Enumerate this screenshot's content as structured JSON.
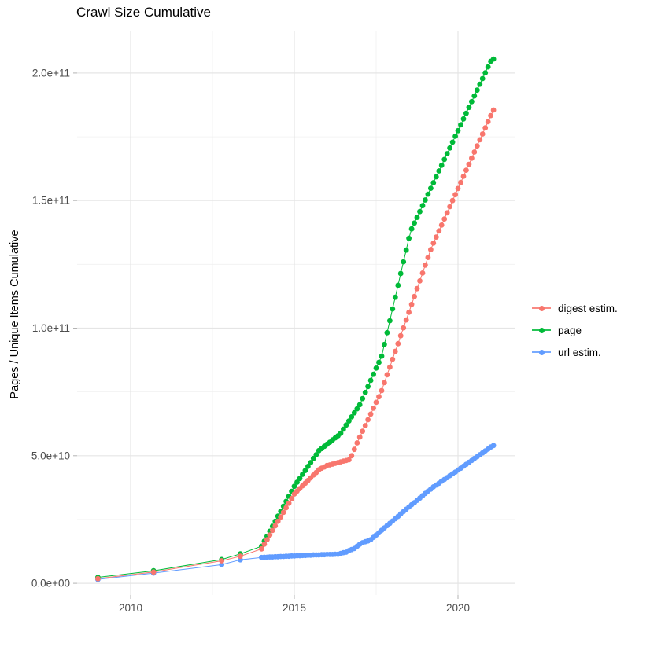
{
  "title": "Crawl Size Cumulative",
  "chart_data": {
    "type": "scatter",
    "title": "Crawl Size Cumulative",
    "xlabel": "",
    "ylabel": "Pages / Unique Items Cumulative",
    "value_unit": "pages, values stored in units of 1e9",
    "xlim": [
      2008.365,
      2021.754
    ],
    "ylim_e9": [
      -4.6,
      216.3
    ],
    "grid": "major+minor, light grey on white",
    "legend_position": "right",
    "x_major_ticks": [
      {
        "value": 2010,
        "label": "2010"
      },
      {
        "value": 2015,
        "label": "2015"
      },
      {
        "value": 2020,
        "label": "2020"
      }
    ],
    "x_minor_ticks": [
      2012.5,
      2017.5
    ],
    "y_major_ticks": [
      {
        "value": 0,
        "label": "0.0e+00"
      },
      {
        "value": 50,
        "label": "5.0e+10"
      },
      {
        "value": 100,
        "label": "1.0e+11"
      },
      {
        "value": 150,
        "label": "1.5e+11"
      },
      {
        "value": 200,
        "label": "2.0e+11"
      }
    ],
    "y_minor_ticks": [
      25,
      75,
      125,
      175
    ],
    "series": [
      {
        "name": "digest estim.",
        "color": "#F8766D",
        "points_year_value_e9": [
          [
            2009.0,
            1.8
          ],
          [
            2010.7,
            4.4
          ],
          [
            2012.78,
            8.8
          ],
          [
            2013.35,
            10.6
          ],
          [
            2014.0,
            13.5
          ],
          [
            2014.083,
            15.3
          ],
          [
            2014.167,
            17.1
          ],
          [
            2014.25,
            18.9
          ],
          [
            2014.333,
            20.7
          ],
          [
            2014.417,
            22.5
          ],
          [
            2014.5,
            24.3
          ],
          [
            2014.583,
            26.0
          ],
          [
            2014.667,
            27.8
          ],
          [
            2014.75,
            29.6
          ],
          [
            2014.833,
            31.4
          ],
          [
            2014.917,
            33.2
          ],
          [
            2015.0,
            35.0
          ],
          [
            2015.083,
            36.1
          ],
          [
            2015.167,
            37.1
          ],
          [
            2015.25,
            38.2
          ],
          [
            2015.333,
            39.2
          ],
          [
            2015.417,
            40.3
          ],
          [
            2015.5,
            41.3
          ],
          [
            2015.583,
            42.4
          ],
          [
            2015.667,
            43.4
          ],
          [
            2015.75,
            44.5
          ],
          [
            2015.833,
            45.1
          ],
          [
            2015.917,
            45.6
          ],
          [
            2016.0,
            46.2
          ],
          [
            2016.083,
            46.4
          ],
          [
            2016.167,
            46.7
          ],
          [
            2016.25,
            47.0
          ],
          [
            2016.333,
            47.3
          ],
          [
            2016.417,
            47.6
          ],
          [
            2016.5,
            47.9
          ],
          [
            2016.583,
            48.1
          ],
          [
            2016.667,
            48.4
          ],
          [
            2016.75,
            50.0
          ],
          [
            2016.833,
            52.5
          ],
          [
            2016.917,
            55.0
          ],
          [
            2017.0,
            57.3
          ],
          [
            2017.083,
            59.6
          ],
          [
            2017.167,
            61.8
          ],
          [
            2017.25,
            64.1
          ],
          [
            2017.333,
            66.3
          ],
          [
            2017.417,
            68.6
          ],
          [
            2017.5,
            70.9
          ],
          [
            2017.583,
            73.1
          ],
          [
            2017.667,
            75.5
          ],
          [
            2017.75,
            78.6
          ],
          [
            2017.833,
            81.7
          ],
          [
            2017.917,
            84.7
          ],
          [
            2018.0,
            87.8
          ],
          [
            2018.083,
            90.9
          ],
          [
            2018.167,
            93.9
          ],
          [
            2018.25,
            97.0
          ],
          [
            2018.333,
            100.1
          ],
          [
            2018.417,
            103.2
          ],
          [
            2018.5,
            106.2
          ],
          [
            2018.583,
            109.3
          ],
          [
            2018.667,
            112.4
          ],
          [
            2018.75,
            115.5
          ],
          [
            2018.833,
            118.5
          ],
          [
            2018.917,
            121.6
          ],
          [
            2019.0,
            124.7
          ],
          [
            2019.083,
            127.7
          ],
          [
            2019.167,
            130.8
          ],
          [
            2019.25,
            133.3
          ],
          [
            2019.333,
            135.7
          ],
          [
            2019.417,
            138.1
          ],
          [
            2019.5,
            140.4
          ],
          [
            2019.583,
            142.8
          ],
          [
            2019.667,
            145.2
          ],
          [
            2019.75,
            147.6
          ],
          [
            2019.833,
            150.0
          ],
          [
            2019.917,
            152.3
          ],
          [
            2020.0,
            154.7
          ],
          [
            2020.083,
            157.1
          ],
          [
            2020.167,
            159.5
          ],
          [
            2020.25,
            161.9
          ],
          [
            2020.333,
            164.2
          ],
          [
            2020.417,
            166.6
          ],
          [
            2020.5,
            169.0
          ],
          [
            2020.583,
            171.4
          ],
          [
            2020.667,
            173.8
          ],
          [
            2020.75,
            176.1
          ],
          [
            2020.833,
            178.5
          ],
          [
            2020.917,
            180.9
          ],
          [
            2021.0,
            183.3
          ],
          [
            2021.083,
            185.5
          ]
        ]
      },
      {
        "name": "page",
        "color": "#00BA38",
        "points_year_value_e9": [
          [
            2009.0,
            2.3
          ],
          [
            2010.7,
            4.9
          ],
          [
            2012.78,
            9.3
          ],
          [
            2013.35,
            11.5
          ],
          [
            2014.0,
            14.5
          ],
          [
            2014.083,
            16.5
          ],
          [
            2014.167,
            18.4
          ],
          [
            2014.25,
            20.4
          ],
          [
            2014.333,
            22.3
          ],
          [
            2014.417,
            24.3
          ],
          [
            2014.5,
            26.3
          ],
          [
            2014.583,
            28.2
          ],
          [
            2014.667,
            30.2
          ],
          [
            2014.75,
            32.1
          ],
          [
            2014.833,
            34.1
          ],
          [
            2014.917,
            36.0
          ],
          [
            2015.0,
            38.0
          ],
          [
            2015.083,
            39.6
          ],
          [
            2015.167,
            41.1
          ],
          [
            2015.25,
            42.7
          ],
          [
            2015.333,
            44.2
          ],
          [
            2015.417,
            45.8
          ],
          [
            2015.5,
            47.3
          ],
          [
            2015.583,
            48.9
          ],
          [
            2015.667,
            50.4
          ],
          [
            2015.75,
            52.0
          ],
          [
            2015.833,
            52.8
          ],
          [
            2015.917,
            53.7
          ],
          [
            2016.0,
            54.5
          ],
          [
            2016.083,
            55.3
          ],
          [
            2016.167,
            56.2
          ],
          [
            2016.25,
            57.0
          ],
          [
            2016.333,
            57.8
          ],
          [
            2016.417,
            58.8
          ],
          [
            2016.5,
            60.4
          ],
          [
            2016.583,
            62.0
          ],
          [
            2016.667,
            63.6
          ],
          [
            2016.75,
            65.2
          ],
          [
            2016.833,
            66.8
          ],
          [
            2016.917,
            68.4
          ],
          [
            2017.0,
            70.0
          ],
          [
            2017.083,
            72.4
          ],
          [
            2017.167,
            74.8
          ],
          [
            2017.25,
            77.1
          ],
          [
            2017.333,
            79.5
          ],
          [
            2017.417,
            81.9
          ],
          [
            2017.5,
            84.3
          ],
          [
            2017.583,
            86.6
          ],
          [
            2017.667,
            89.0
          ],
          [
            2017.75,
            93.6
          ],
          [
            2017.833,
            98.2
          ],
          [
            2017.917,
            102.9
          ],
          [
            2018.0,
            107.5
          ],
          [
            2018.083,
            112.1
          ],
          [
            2018.167,
            116.8
          ],
          [
            2018.25,
            121.4
          ],
          [
            2018.333,
            126.0
          ],
          [
            2018.417,
            130.6
          ],
          [
            2018.5,
            135.2
          ],
          [
            2018.583,
            138.9
          ],
          [
            2018.667,
            141.2
          ],
          [
            2018.75,
            143.4
          ],
          [
            2018.833,
            145.7
          ],
          [
            2018.917,
            148.0
          ],
          [
            2019.0,
            150.2
          ],
          [
            2019.083,
            152.5
          ],
          [
            2019.167,
            154.8
          ],
          [
            2019.25,
            157.0
          ],
          [
            2019.333,
            159.3
          ],
          [
            2019.417,
            161.6
          ],
          [
            2019.5,
            163.8
          ],
          [
            2019.583,
            166.1
          ],
          [
            2019.667,
            168.4
          ],
          [
            2019.75,
            170.6
          ],
          [
            2019.833,
            172.9
          ],
          [
            2019.917,
            175.2
          ],
          [
            2020.0,
            177.4
          ],
          [
            2020.083,
            179.7
          ],
          [
            2020.167,
            182.0
          ],
          [
            2020.25,
            184.2
          ],
          [
            2020.333,
            186.5
          ],
          [
            2020.417,
            188.8
          ],
          [
            2020.5,
            191.0
          ],
          [
            2020.583,
            193.3
          ],
          [
            2020.667,
            195.6
          ],
          [
            2020.75,
            197.8
          ],
          [
            2020.833,
            200.1
          ],
          [
            2020.917,
            202.4
          ],
          [
            2021.0,
            204.6
          ],
          [
            2021.083,
            205.5
          ]
        ]
      },
      {
        "name": "url estim.",
        "color": "#619CFF",
        "points_year_value_e9": [
          [
            2009.0,
            1.5
          ],
          [
            2010.7,
            4.0
          ],
          [
            2012.78,
            7.3
          ],
          [
            2013.35,
            9.2
          ],
          [
            2014.0,
            10.1
          ],
          [
            2014.083,
            10.2
          ],
          [
            2014.167,
            10.2
          ],
          [
            2014.25,
            10.3
          ],
          [
            2014.333,
            10.3
          ],
          [
            2014.417,
            10.4
          ],
          [
            2014.5,
            10.4
          ],
          [
            2014.583,
            10.5
          ],
          [
            2014.667,
            10.5
          ],
          [
            2014.75,
            10.6
          ],
          [
            2014.833,
            10.6
          ],
          [
            2014.917,
            10.7
          ],
          [
            2015.0,
            10.7
          ],
          [
            2015.083,
            10.8
          ],
          [
            2015.167,
            10.8
          ],
          [
            2015.25,
            10.9
          ],
          [
            2015.333,
            10.9
          ],
          [
            2015.417,
            11.0
          ],
          [
            2015.5,
            11.0
          ],
          [
            2015.583,
            11.1
          ],
          [
            2015.667,
            11.1
          ],
          [
            2015.75,
            11.1
          ],
          [
            2015.833,
            11.2
          ],
          [
            2015.917,
            11.2
          ],
          [
            2016.0,
            11.3
          ],
          [
            2016.083,
            11.3
          ],
          [
            2016.167,
            11.3
          ],
          [
            2016.25,
            11.4
          ],
          [
            2016.333,
            11.4
          ],
          [
            2016.417,
            11.7
          ],
          [
            2016.5,
            12.0
          ],
          [
            2016.583,
            12.2
          ],
          [
            2016.667,
            12.8
          ],
          [
            2016.75,
            13.2
          ],
          [
            2016.833,
            13.6
          ],
          [
            2016.917,
            14.5
          ],
          [
            2017.0,
            15.3
          ],
          [
            2017.083,
            15.9
          ],
          [
            2017.167,
            16.3
          ],
          [
            2017.25,
            16.6
          ],
          [
            2017.333,
            17.1
          ],
          [
            2017.417,
            18.0
          ],
          [
            2017.5,
            18.9
          ],
          [
            2017.583,
            19.8
          ],
          [
            2017.667,
            20.8
          ],
          [
            2017.75,
            21.7
          ],
          [
            2017.833,
            22.6
          ],
          [
            2017.917,
            23.5
          ],
          [
            2018.0,
            24.4
          ],
          [
            2018.083,
            25.3
          ],
          [
            2018.167,
            26.2
          ],
          [
            2018.25,
            27.2
          ],
          [
            2018.333,
            28.1
          ],
          [
            2018.417,
            29.0
          ],
          [
            2018.5,
            29.9
          ],
          [
            2018.583,
            30.8
          ],
          [
            2018.667,
            31.6
          ],
          [
            2018.75,
            32.5
          ],
          [
            2018.833,
            33.4
          ],
          [
            2018.917,
            34.3
          ],
          [
            2019.0,
            35.2
          ],
          [
            2019.083,
            36.1
          ],
          [
            2019.167,
            36.9
          ],
          [
            2019.25,
            37.8
          ],
          [
            2019.333,
            38.5
          ],
          [
            2019.417,
            39.2
          ],
          [
            2019.5,
            40.0
          ],
          [
            2019.583,
            40.7
          ],
          [
            2019.667,
            41.4
          ],
          [
            2019.75,
            42.2
          ],
          [
            2019.833,
            42.9
          ],
          [
            2019.917,
            43.6
          ],
          [
            2020.0,
            44.4
          ],
          [
            2020.083,
            45.1
          ],
          [
            2020.167,
            45.9
          ],
          [
            2020.25,
            46.6
          ],
          [
            2020.333,
            47.4
          ],
          [
            2020.417,
            48.1
          ],
          [
            2020.5,
            48.9
          ],
          [
            2020.583,
            49.6
          ],
          [
            2020.667,
            50.4
          ],
          [
            2020.75,
            51.1
          ],
          [
            2020.833,
            51.9
          ],
          [
            2020.917,
            52.6
          ],
          [
            2021.0,
            53.4
          ],
          [
            2021.083,
            54.0
          ]
        ]
      }
    ]
  }
}
